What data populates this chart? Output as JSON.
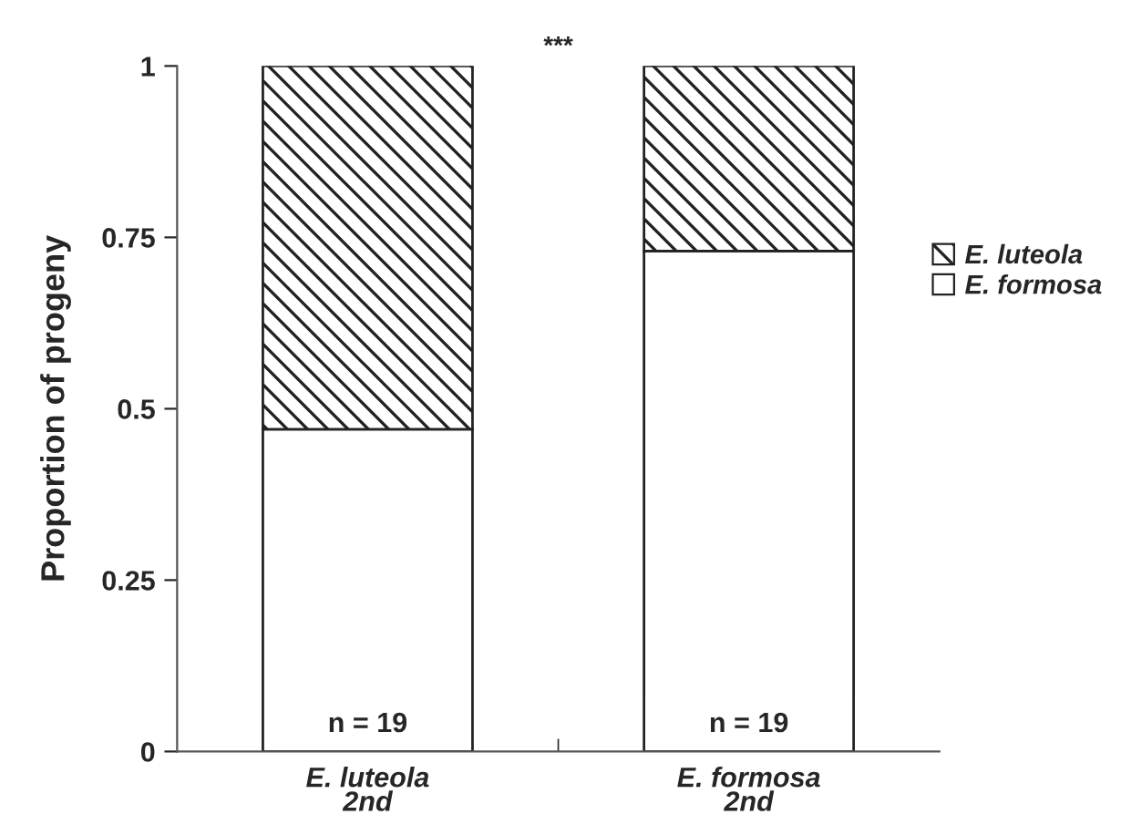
{
  "chart_data": {
    "type": "bar",
    "stacked": true,
    "ylabel": "Proportion of progeny",
    "categories": [
      "E. luteola\n2nd",
      "E. formosa\n2nd"
    ],
    "series": [
      {
        "name": "E. formosa",
        "color": "#ffffff",
        "values": [
          0.47,
          0.73
        ]
      },
      {
        "name": "E. luteola",
        "color": "#222222",
        "values": [
          0.53,
          0.27
        ]
      }
    ],
    "ylim": [
      0,
      1
    ],
    "yticks": [
      0,
      0.25,
      0.5,
      0.75,
      1
    ],
    "grid": false,
    "legend": "right",
    "annotations": [
      "***",
      {
        "text": "n = 19",
        "x": "E. luteola\n2nd",
        "y": 0
      },
      {
        "text": "n = 19",
        "x": "E. formosa\n2nd",
        "y": 0
      }
    ]
  }
}
